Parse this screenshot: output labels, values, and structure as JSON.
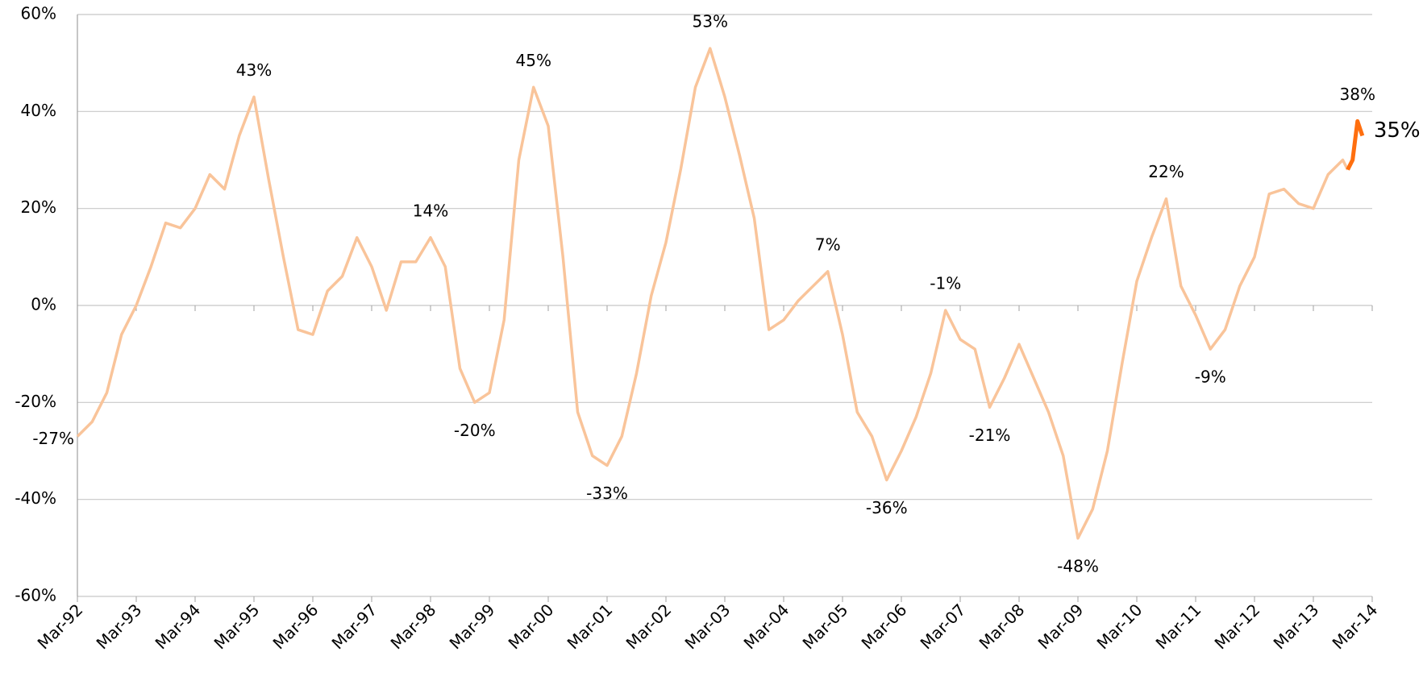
{
  "chart_data": {
    "type": "line",
    "xlim": [
      "Mar-92",
      "Mar-14"
    ],
    "xticks": [
      "Mar-92",
      "Mar-93",
      "Mar-94",
      "Mar-95",
      "Mar-96",
      "Mar-97",
      "Mar-98",
      "Mar-99",
      "Mar-00",
      "Mar-01",
      "Mar-02",
      "Mar-03",
      "Mar-04",
      "Mar-05",
      "Mar-06",
      "Mar-07",
      "Mar-08",
      "Mar-09",
      "Mar-10",
      "Mar-11",
      "Mar-12",
      "Mar-13",
      "Mar-14"
    ],
    "ylim": [
      -60,
      60
    ],
    "yticks": [
      {
        "value": -60,
        "label": "-60%"
      },
      {
        "value": -40,
        "label": "-40%"
      },
      {
        "value": -20,
        "label": "-20%"
      },
      {
        "value": 0,
        "label": "0%"
      },
      {
        "value": 20,
        "label": "20%"
      },
      {
        "value": 40,
        "label": "40%"
      },
      {
        "value": 60,
        "label": "60%"
      }
    ],
    "grid": true,
    "series": [
      {
        "color": "#f9c49a",
        "x": [
          "Mar-92",
          "Jun-92",
          "Sep-92",
          "Dec-92",
          "Mar-93",
          "Jun-93",
          "Sep-93",
          "Dec-93",
          "Mar-94",
          "Jun-94",
          "Sep-94",
          "Dec-94",
          "Mar-95",
          "Jun-95",
          "Sep-95",
          "Dec-95",
          "Mar-96",
          "Jun-96",
          "Sep-96",
          "Dec-96",
          "Mar-97",
          "Jun-97",
          "Sep-97",
          "Dec-97",
          "Mar-98",
          "Jun-98",
          "Sep-98",
          "Dec-98",
          "Mar-99",
          "Jun-99",
          "Sep-99",
          "Dec-99",
          "Mar-00",
          "Jun-00",
          "Sep-00",
          "Dec-00",
          "Mar-01",
          "Jun-01",
          "Sep-01",
          "Dec-01",
          "Mar-02",
          "Jun-02",
          "Sep-02",
          "Dec-02",
          "Mar-03",
          "Jun-03",
          "Sep-03",
          "Dec-03",
          "Mar-04",
          "Jun-04",
          "Sep-04",
          "Dec-04",
          "Mar-05",
          "Jun-05",
          "Sep-05",
          "Dec-05",
          "Mar-06",
          "Jun-06",
          "Sep-06",
          "Dec-06",
          "Mar-07",
          "Jun-07",
          "Sep-07",
          "Dec-07",
          "Mar-08",
          "Jun-08",
          "Sep-08",
          "Dec-08",
          "Mar-09",
          "Jun-09",
          "Sep-09",
          "Dec-09",
          "Mar-10",
          "Jun-10",
          "Sep-10",
          "Dec-10",
          "Mar-11",
          "Jun-11",
          "Sep-11",
          "Dec-11",
          "Mar-12",
          "Jun-12",
          "Sep-12",
          "Dec-12",
          "Mar-13",
          "Jun-13",
          "Sep-13",
          "Oct-13"
        ],
        "values": [
          -27,
          -24,
          -18,
          -6,
          0,
          8,
          17,
          16,
          20,
          27,
          24,
          35,
          43,
          26,
          10,
          -5,
          -6,
          3,
          6,
          14,
          8,
          -1,
          9,
          9,
          14,
          8,
          -13,
          -20,
          -18,
          -3,
          30,
          45,
          37,
          10,
          -22,
          -31,
          -33,
          -27,
          -14,
          2,
          13,
          28,
          45,
          53,
          43,
          31,
          18,
          -5,
          -3,
          1,
          4,
          7,
          -6,
          -22,
          -27,
          -36,
          -30,
          -23,
          -14,
          -1,
          -7,
          -9,
          -21,
          -15,
          -8,
          -15,
          -22,
          -31,
          -48,
          -42,
          -30,
          -12,
          5,
          14,
          22,
          4,
          -2,
          -9,
          -5,
          4,
          10,
          23,
          24,
          21,
          20,
          27,
          30,
          28
        ]
      },
      {
        "color": "#ff6f0f",
        "x": [
          "Oct-13",
          "Nov-13",
          "Dec-13",
          "Jan-14"
        ],
        "values": [
          28,
          30,
          38,
          35
        ]
      }
    ],
    "annotations": [
      {
        "label": "-27%",
        "value": -27,
        "x": "Mar-92",
        "placement": "left"
      },
      {
        "label": "43%",
        "value": 43,
        "x": "Mar-95",
        "placement": "above"
      },
      {
        "label": "14%",
        "value": 14,
        "x": "Mar-98",
        "placement": "above"
      },
      {
        "label": "-20%",
        "value": -20,
        "x": "Dec-98",
        "placement": "below"
      },
      {
        "label": "45%",
        "value": 45,
        "x": "Dec-99",
        "placement": "above"
      },
      {
        "label": "-33%",
        "value": -33,
        "x": "Mar-01",
        "placement": "below"
      },
      {
        "label": "53%",
        "value": 53,
        "x": "Dec-02",
        "placement": "above"
      },
      {
        "label": "7%",
        "value": 7,
        "x": "Dec-04",
        "placement": "above"
      },
      {
        "label": "-36%",
        "value": -36,
        "x": "Dec-05",
        "placement": "below"
      },
      {
        "label": "-1%",
        "value": -1,
        "x": "Dec-06",
        "placement": "above"
      },
      {
        "label": "-21%",
        "value": -21,
        "x": "Sep-07",
        "placement": "below"
      },
      {
        "label": "-48%",
        "value": -48,
        "x": "Mar-09",
        "placement": "below"
      },
      {
        "label": "22%",
        "value": 22,
        "x": "Sep-10",
        "placement": "above"
      },
      {
        "label": "-9%",
        "value": -9,
        "x": "Jun-11",
        "placement": "below"
      },
      {
        "label": "38%",
        "value": 38,
        "x": "Dec-13",
        "placement": "above"
      },
      {
        "label": "35%",
        "value": 35,
        "x": "Jan-14",
        "placement": "right"
      }
    ]
  }
}
